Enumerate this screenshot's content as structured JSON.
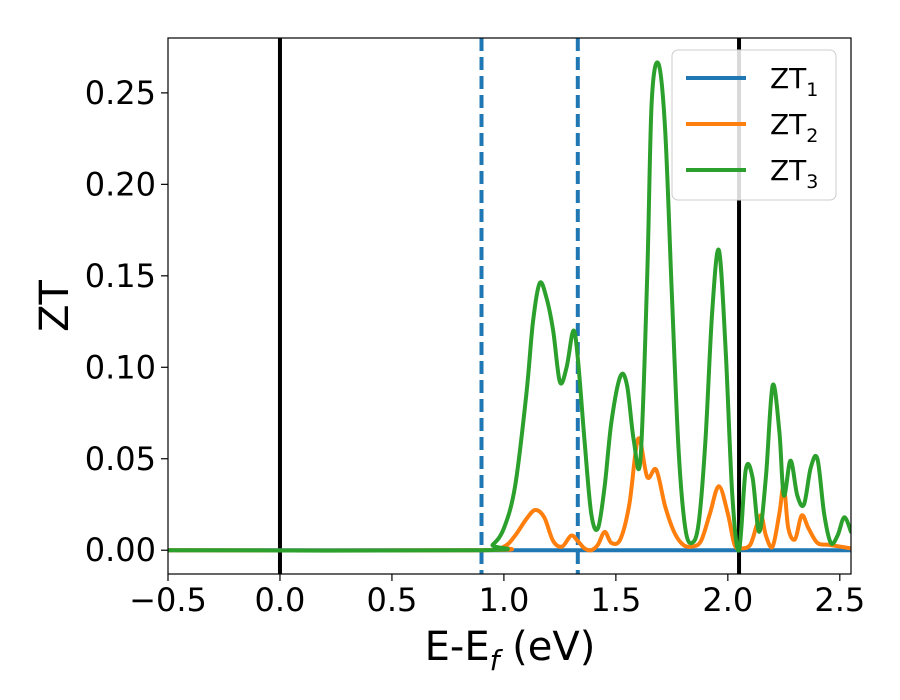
{
  "chart_data": {
    "type": "line",
    "xlabel": {
      "main": "E-E",
      "sub": "f",
      "suffix": " (eV)"
    },
    "ylabel": "ZT",
    "xlim": [
      -0.5,
      2.55
    ],
    "ylim": [
      -0.013,
      0.28
    ],
    "x_ticks": [
      -0.5,
      0.0,
      0.5,
      1.0,
      1.5,
      2.0,
      2.5
    ],
    "x_tick_labels": [
      "−0.5",
      "0.0",
      "0.5",
      "1.0",
      "1.5",
      "2.0",
      "2.5"
    ],
    "y_ticks": [
      0.0,
      0.05,
      0.1,
      0.15,
      0.2,
      0.25
    ],
    "y_tick_labels": [
      "0.00",
      "0.05",
      "0.10",
      "0.15",
      "0.20",
      "0.25"
    ],
    "grid": false,
    "legend_position": "top-right",
    "vlines": [
      {
        "x": 0.0,
        "style": "solid",
        "color": "#000000"
      },
      {
        "x": 2.05,
        "style": "solid",
        "color": "#000000"
      },
      {
        "x": 0.9,
        "style": "dashed",
        "color": "#1f77b4"
      },
      {
        "x": 1.33,
        "style": "dashed",
        "color": "#1f77b4"
      }
    ],
    "series": [
      {
        "name": "ZT",
        "sub": "1",
        "color": "#1f77b4",
        "x": [
          -0.5,
          2.55
        ],
        "y": [
          0.0,
          0.0
        ]
      },
      {
        "name": "ZT",
        "sub": "2",
        "color": "#ff7f0e",
        "x": [
          -0.5,
          0.9,
          1.0,
          1.05,
          1.1,
          1.14,
          1.18,
          1.22,
          1.26,
          1.3,
          1.33,
          1.36,
          1.39,
          1.42,
          1.45,
          1.48,
          1.52,
          1.56,
          1.6,
          1.64,
          1.68,
          1.72,
          1.76,
          1.8,
          1.84,
          1.88,
          1.92,
          1.96,
          2.0,
          2.03,
          2.06,
          2.1,
          2.13,
          2.15,
          2.17,
          2.2,
          2.23,
          2.25,
          2.27,
          2.3,
          2.33,
          2.36,
          2.4,
          2.45,
          2.5,
          2.55
        ],
        "y": [
          0.0,
          0.0,
          0.002,
          0.008,
          0.017,
          0.022,
          0.018,
          0.005,
          0.002,
          0.008,
          0.005,
          0.001,
          0.0,
          0.003,
          0.01,
          0.004,
          0.006,
          0.025,
          0.061,
          0.04,
          0.044,
          0.024,
          0.01,
          0.003,
          0.002,
          0.005,
          0.02,
          0.035,
          0.02,
          0.003,
          0.001,
          0.003,
          0.014,
          0.019,
          0.008,
          0.002,
          0.02,
          0.035,
          0.012,
          0.006,
          0.019,
          0.012,
          0.004,
          0.003,
          0.002,
          0.001
        ]
      },
      {
        "name": "ZT",
        "sub": "3",
        "color": "#2ca02c",
        "x": [
          -0.5,
          0.9,
          0.95,
          1.0,
          1.05,
          1.1,
          1.13,
          1.16,
          1.19,
          1.22,
          1.25,
          1.28,
          1.31,
          1.33,
          1.36,
          1.39,
          1.42,
          1.45,
          1.48,
          1.52,
          1.55,
          1.58,
          1.61,
          1.64,
          1.66,
          1.69,
          1.72,
          1.75,
          1.78,
          1.81,
          1.84,
          1.87,
          1.9,
          1.93,
          1.96,
          1.99,
          2.02,
          2.05,
          2.08,
          2.11,
          2.14,
          2.17,
          2.2,
          2.23,
          2.25,
          2.28,
          2.31,
          2.34,
          2.37,
          2.4,
          2.43,
          2.46,
          2.49,
          2.52,
          2.55
        ],
        "y": [
          0.0,
          0.0,
          0.003,
          0.012,
          0.035,
          0.085,
          0.125,
          0.146,
          0.138,
          0.12,
          0.092,
          0.1,
          0.12,
          0.105,
          0.06,
          0.02,
          0.012,
          0.035,
          0.07,
          0.095,
          0.09,
          0.06,
          0.05,
          0.15,
          0.245,
          0.266,
          0.23,
          0.14,
          0.055,
          0.012,
          0.004,
          0.015,
          0.06,
          0.13,
          0.164,
          0.11,
          0.03,
          0.0,
          0.044,
          0.04,
          0.01,
          0.04,
          0.09,
          0.065,
          0.03,
          0.049,
          0.03,
          0.025,
          0.045,
          0.05,
          0.02,
          0.004,
          0.008,
          0.018,
          0.01
        ]
      }
    ]
  }
}
